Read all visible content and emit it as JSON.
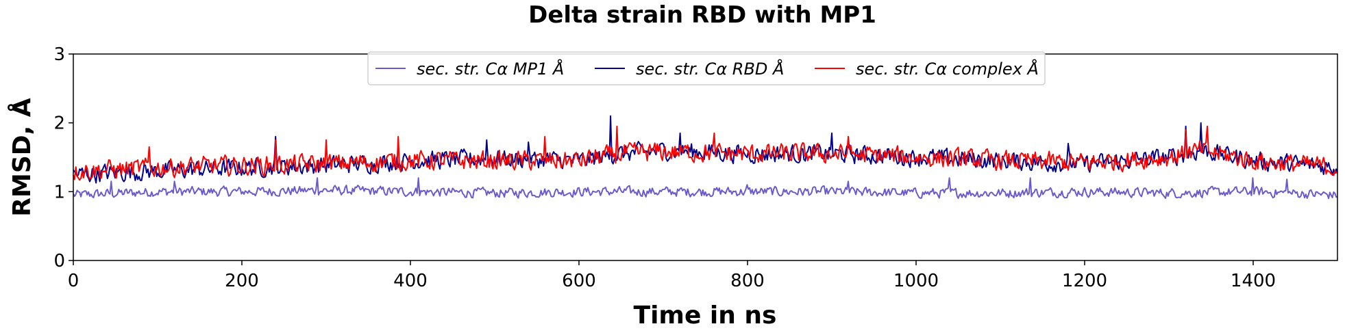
{
  "chart_data": {
    "type": "line",
    "title": "Delta strain RBD with MP1",
    "xlabel": "Time in ns",
    "ylabel": "RMSD, Å",
    "xlim": [
      0,
      1500
    ],
    "ylim": [
      0,
      3
    ],
    "xticks": [
      0,
      200,
      400,
      600,
      800,
      1000,
      1200,
      1400
    ],
    "yticks": [
      0,
      1,
      2,
      3
    ],
    "grid": false,
    "legend_position": "top-center",
    "series": [
      {
        "name": "sec. str. Cα MP1 Å",
        "color": "#6a5acd",
        "baseline": [
          [
            0,
            0.95
          ],
          [
            100,
            1.0
          ],
          [
            200,
            1.0
          ],
          [
            300,
            1.02
          ],
          [
            400,
            1.0
          ],
          [
            500,
            0.98
          ],
          [
            600,
            1.0
          ],
          [
            700,
            1.0
          ],
          [
            800,
            1.0
          ],
          [
            900,
            1.0
          ],
          [
            1000,
            0.98
          ],
          [
            1100,
            0.98
          ],
          [
            1200,
            1.0
          ],
          [
            1300,
            0.98
          ],
          [
            1400,
            1.0
          ],
          [
            1500,
            0.95
          ]
        ],
        "noise": 0.07,
        "peaks": [
          [
            45,
            1.15
          ],
          [
            120,
            1.15
          ],
          [
            290,
            1.2
          ],
          [
            410,
            1.2
          ],
          [
            800,
            1.1
          ],
          [
            920,
            1.15
          ],
          [
            1040,
            1.2
          ],
          [
            1135,
            1.2
          ],
          [
            1400,
            1.2
          ],
          [
            1440,
            1.18
          ]
        ]
      },
      {
        "name": "sec. str. Cα RBD Å",
        "color": "#00008b",
        "baseline": [
          [
            0,
            1.25
          ],
          [
            100,
            1.3
          ],
          [
            200,
            1.35
          ],
          [
            300,
            1.38
          ],
          [
            400,
            1.45
          ],
          [
            500,
            1.48
          ],
          [
            600,
            1.45
          ],
          [
            650,
            1.55
          ],
          [
            700,
            1.6
          ],
          [
            800,
            1.55
          ],
          [
            900,
            1.55
          ],
          [
            1000,
            1.5
          ],
          [
            1100,
            1.45
          ],
          [
            1200,
            1.4
          ],
          [
            1300,
            1.5
          ],
          [
            1340,
            1.6
          ],
          [
            1400,
            1.45
          ],
          [
            1500,
            1.35
          ]
        ],
        "noise": 0.13,
        "peaks": [
          [
            240,
            1.8
          ],
          [
            490,
            1.75
          ],
          [
            540,
            1.72
          ],
          [
            637,
            2.1
          ],
          [
            720,
            1.85
          ],
          [
            900,
            1.85
          ],
          [
            1180,
            1.7
          ],
          [
            1320,
            1.95
          ],
          [
            1338,
            2.0
          ]
        ]
      },
      {
        "name": "sec. str. Cα complex Å",
        "color": "#ff0000",
        "baseline": [
          [
            0,
            1.3
          ],
          [
            100,
            1.35
          ],
          [
            200,
            1.38
          ],
          [
            300,
            1.4
          ],
          [
            400,
            1.45
          ],
          [
            500,
            1.45
          ],
          [
            600,
            1.45
          ],
          [
            650,
            1.55
          ],
          [
            700,
            1.58
          ],
          [
            800,
            1.55
          ],
          [
            900,
            1.55
          ],
          [
            1000,
            1.5
          ],
          [
            1100,
            1.45
          ],
          [
            1200,
            1.42
          ],
          [
            1300,
            1.5
          ],
          [
            1340,
            1.6
          ],
          [
            1400,
            1.45
          ],
          [
            1500,
            1.35
          ]
        ],
        "noise": 0.14,
        "peaks": [
          [
            90,
            1.65
          ],
          [
            240,
            1.75
          ],
          [
            300,
            1.75
          ],
          [
            385,
            1.8
          ],
          [
            560,
            1.8
          ],
          [
            645,
            1.95
          ],
          [
            760,
            1.85
          ],
          [
            920,
            1.8
          ],
          [
            1320,
            1.9
          ],
          [
            1345,
            1.95
          ]
        ]
      }
    ]
  }
}
